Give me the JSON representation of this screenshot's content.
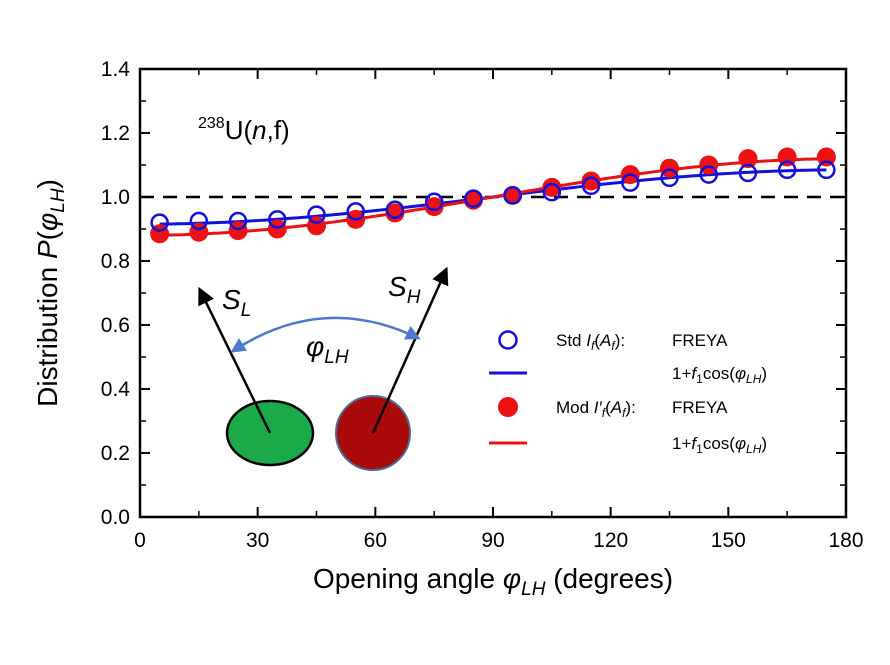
{
  "colors": {
    "std": "#1010e0",
    "mod": "#ee1111",
    "light_fragment": "#1aaa4a",
    "heavy_fragment": "#aa0a0a",
    "angle_arrow": "#4a7ac8"
  },
  "chart_data": {
    "type": "scatter",
    "xlabel": {
      "text": "Opening angle ",
      "symbol": "φ",
      "subscript": "LH",
      "suffix": " (degrees)"
    },
    "ylabel": {
      "text": "Distribution ",
      "symbol": "P",
      "open": "(",
      "inner_symbol": "φ",
      "inner_subscript": "LH",
      "close": ")"
    },
    "xlim": [
      0,
      180
    ],
    "ylim": [
      0,
      1.4
    ],
    "x_ticks": [
      0,
      30,
      60,
      90,
      120,
      150,
      180
    ],
    "y_ticks": [
      0.0,
      0.2,
      0.4,
      0.6,
      0.8,
      1.0,
      1.2,
      1.4
    ],
    "x_tick_labels": [
      "0",
      "30",
      "60",
      "90",
      "120",
      "150",
      "180"
    ],
    "y_tick_labels": [
      "0.0",
      "0.2",
      "0.4",
      "0.6",
      "0.8",
      "1.0",
      "1.2",
      "1.4"
    ],
    "reference_line": 1.0,
    "annotation": {
      "sup": "238",
      "pre": "U(",
      "it": "n",
      "post": ",f)"
    },
    "series": [
      {
        "id": "std_freya",
        "marker": "open-circle",
        "x": [
          5,
          15,
          25,
          35,
          45,
          55,
          65,
          75,
          85,
          95,
          105,
          115,
          125,
          135,
          145,
          155,
          165,
          175
        ],
        "y": [
          0.92,
          0.925,
          0.925,
          0.93,
          0.945,
          0.955,
          0.96,
          0.985,
          0.995,
          1.005,
          1.015,
          1.035,
          1.045,
          1.06,
          1.07,
          1.075,
          1.085,
          1.085
        ]
      },
      {
        "id": "std_fit",
        "line": "solid",
        "f1": -0.085,
        "x_range": [
          5,
          175
        ]
      },
      {
        "id": "mod_freya",
        "marker": "filled-circle",
        "x": [
          5,
          15,
          25,
          35,
          45,
          55,
          65,
          75,
          85,
          95,
          105,
          115,
          125,
          135,
          145,
          155,
          165,
          175
        ],
        "y": [
          0.885,
          0.89,
          0.895,
          0.9,
          0.91,
          0.93,
          0.95,
          0.97,
          0.99,
          1.005,
          1.03,
          1.05,
          1.07,
          1.09,
          1.1,
          1.12,
          1.125,
          1.125
        ]
      },
      {
        "id": "mod_fit",
        "line": "solid",
        "f1": -0.12,
        "x_range": [
          5,
          175
        ]
      }
    ],
    "legend": {
      "position": "lower-right",
      "entries": [
        {
          "series": "std_freya",
          "label_pre": "Std ",
          "label_sym": "I",
          "label_sub": "f",
          "label_mid": "(",
          "label_sym2": "A",
          "label_sub2": "f",
          "label_post": "):",
          "source": "FREYA"
        },
        {
          "series": "std_fit",
          "fit_pre": "1+",
          "fit_sym": "f",
          "fit_sub": "1",
          "fit_mid": "cos(",
          "fit_phi": "φ",
          "fit_phi_sub": "LH",
          "fit_post": ")"
        },
        {
          "series": "mod_freya",
          "label_pre": "Mod ",
          "label_sym": "I′",
          "label_sub": "f",
          "label_mid": "(",
          "label_sym2": "A",
          "label_sub2": "f",
          "label_post": "):",
          "source": "FREYA"
        },
        {
          "series": "mod_fit",
          "fit_pre": "1+",
          "fit_sym": "f",
          "fit_sub": "1",
          "fit_mid": "cos(",
          "fit_phi": "φ",
          "fit_phi_sub": "LH",
          "fit_post": ")"
        }
      ]
    },
    "diagram": {
      "light_spin": {
        "symbol": "S",
        "subscript": "L"
      },
      "heavy_spin": {
        "symbol": "S",
        "subscript": "H"
      },
      "angle": {
        "symbol": "φ",
        "subscript": "LH"
      }
    }
  }
}
